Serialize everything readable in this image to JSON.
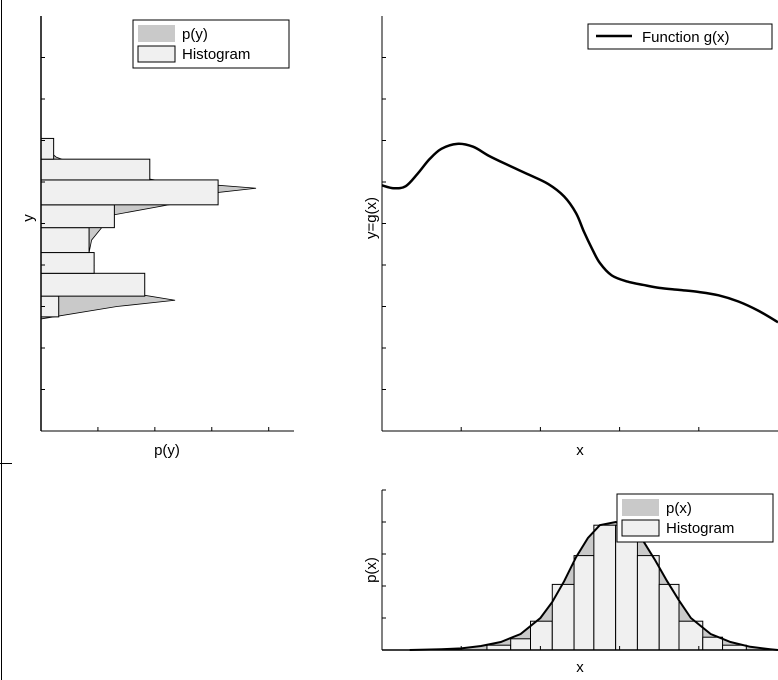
{
  "chart_data": [
    {
      "id": "py",
      "type": "bar",
      "orientation": "horizontal",
      "xlabel": "p(y)",
      "ylabel": "y",
      "grid": false,
      "legend_placement": "top-right",
      "legend": [
        "p(y)",
        "Histogram"
      ],
      "xlim": [
        0,
        1
      ],
      "ylim": [
        0,
        1
      ],
      "histogram": {
        "bins": [
          {
            "y0": 0.275,
            "y1": 0.325,
            "value": 0.07
          },
          {
            "y0": 0.325,
            "y1": 0.38,
            "value": 0.41
          },
          {
            "y0": 0.38,
            "y1": 0.43,
            "value": 0.21
          },
          {
            "y0": 0.43,
            "y1": 0.49,
            "value": 0.19
          },
          {
            "y0": 0.49,
            "y1": 0.545,
            "value": 0.29
          },
          {
            "y0": 0.545,
            "y1": 0.605,
            "value": 0.7
          },
          {
            "y0": 0.605,
            "y1": 0.655,
            "value": 0.43
          },
          {
            "y0": 0.655,
            "y1": 0.705,
            "value": 0.05
          }
        ]
      },
      "density": {
        "y": [
          0.27,
          0.3,
          0.315,
          0.33,
          0.345,
          0.36,
          0.38,
          0.4,
          0.43,
          0.46,
          0.49,
          0.52,
          0.55,
          0.57,
          0.585,
          0.595,
          0.605,
          0.62,
          0.64,
          0.66,
          0.68,
          0.7
        ],
        "value": [
          0.0,
          0.3,
          0.53,
          0.38,
          0.18,
          0.1,
          0.08,
          0.21,
          0.19,
          0.2,
          0.24,
          0.28,
          0.55,
          0.63,
          0.85,
          0.64,
          0.45,
          0.3,
          0.15,
          0.06,
          0.02,
          0.0
        ]
      }
    },
    {
      "id": "gx",
      "type": "line",
      "xlabel": "x",
      "ylabel": "y=g(x)",
      "grid": false,
      "legend_placement": "top-right",
      "xlim": [
        0,
        1
      ],
      "ylim": [
        0,
        1
      ],
      "series": [
        {
          "name": "Function g(x)",
          "x": [
            0.0,
            0.03,
            0.06,
            0.09,
            0.12,
            0.15,
            0.19,
            0.23,
            0.27,
            0.32,
            0.37,
            0.42,
            0.46,
            0.49,
            0.51,
            0.53,
            0.55,
            0.58,
            0.62,
            0.66,
            0.7,
            0.75,
            0.8,
            0.85,
            0.9,
            0.95,
            1.0
          ],
          "y": [
            0.592,
            0.585,
            0.59,
            0.62,
            0.655,
            0.68,
            0.692,
            0.685,
            0.663,
            0.64,
            0.618,
            0.595,
            0.565,
            0.525,
            0.48,
            0.44,
            0.405,
            0.375,
            0.36,
            0.352,
            0.345,
            0.34,
            0.335,
            0.327,
            0.312,
            0.29,
            0.262
          ]
        }
      ]
    },
    {
      "id": "px",
      "type": "bar",
      "xlabel": "x",
      "ylabel": "p(x)",
      "grid": false,
      "legend_placement": "top-right",
      "legend": [
        "p(x)",
        "Histogram"
      ],
      "xlim": [
        0,
        1
      ],
      "ylim": [
        0,
        1
      ],
      "histogram": {
        "bins": [
          {
            "x0": 0.265,
            "x1": 0.325,
            "value": 0.03
          },
          {
            "x0": 0.325,
            "x1": 0.375,
            "value": 0.07
          },
          {
            "x0": 0.375,
            "x1": 0.43,
            "value": 0.18
          },
          {
            "x0": 0.43,
            "x1": 0.485,
            "value": 0.41
          },
          {
            "x0": 0.485,
            "x1": 0.535,
            "value": 0.59
          },
          {
            "x0": 0.535,
            "x1": 0.59,
            "value": 0.78
          },
          {
            "x0": 0.59,
            "x1": 0.645,
            "value": 0.78
          },
          {
            "x0": 0.645,
            "x1": 0.7,
            "value": 0.59
          },
          {
            "x0": 0.7,
            "x1": 0.75,
            "value": 0.41
          },
          {
            "x0": 0.75,
            "x1": 0.81,
            "value": 0.18
          },
          {
            "x0": 0.81,
            "x1": 0.86,
            "value": 0.08
          },
          {
            "x0": 0.86,
            "x1": 0.92,
            "value": 0.03
          }
        ]
      },
      "density": {
        "x": [
          0.07,
          0.15,
          0.2,
          0.25,
          0.3,
          0.35,
          0.4,
          0.43,
          0.46,
          0.49,
          0.52,
          0.55,
          0.59,
          0.63,
          0.66,
          0.69,
          0.72,
          0.75,
          0.78,
          0.83,
          0.88,
          0.93,
          0.98,
          1.0
        ],
        "value": [
          0.0,
          0.005,
          0.01,
          0.025,
          0.05,
          0.1,
          0.2,
          0.3,
          0.43,
          0.58,
          0.7,
          0.78,
          0.8,
          0.77,
          0.68,
          0.56,
          0.43,
          0.31,
          0.2,
          0.1,
          0.05,
          0.02,
          0.005,
          0.0
        ]
      }
    }
  ]
}
